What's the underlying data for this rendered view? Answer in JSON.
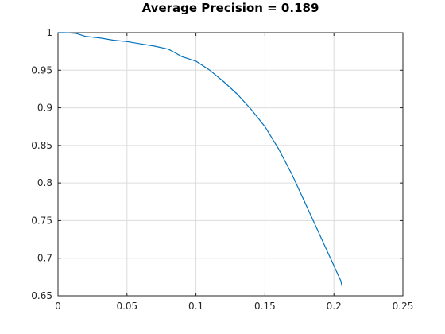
{
  "chart_data": {
    "type": "line",
    "title": "Average Precision = 0.189",
    "xlabel": "",
    "ylabel": "",
    "xlim": [
      0,
      0.25
    ],
    "ylim": [
      0.65,
      1
    ],
    "xticks": [
      0,
      0.05,
      0.1,
      0.15,
      0.2,
      0.25
    ],
    "xtick_labels": [
      "0",
      "0.05",
      "0.1",
      "0.15",
      "0.2",
      "0.25"
    ],
    "yticks": [
      0.65,
      0.7,
      0.75,
      0.8,
      0.85,
      0.9,
      0.95,
      1
    ],
    "ytick_labels": [
      "0.65",
      "0.7",
      "0.75",
      "0.8",
      "0.85",
      "0.9",
      "0.95",
      "1"
    ],
    "grid": true,
    "series": [
      {
        "color": "#0072bd",
        "x": [
          0.0,
          0.005,
          0.013,
          0.02,
          0.03,
          0.04,
          0.05,
          0.06,
          0.07,
          0.08,
          0.085,
          0.09,
          0.1,
          0.11,
          0.12,
          0.13,
          0.14,
          0.15,
          0.16,
          0.17,
          0.18,
          0.19,
          0.195,
          0.2,
          0.205,
          0.206
        ],
        "y": [
          1.0,
          1.0,
          0.999,
          0.995,
          0.993,
          0.99,
          0.988,
          0.985,
          0.982,
          0.978,
          0.973,
          0.968,
          0.962,
          0.95,
          0.935,
          0.918,
          0.898,
          0.875,
          0.845,
          0.81,
          0.77,
          0.73,
          0.71,
          0.69,
          0.67,
          0.662
        ]
      }
    ]
  }
}
